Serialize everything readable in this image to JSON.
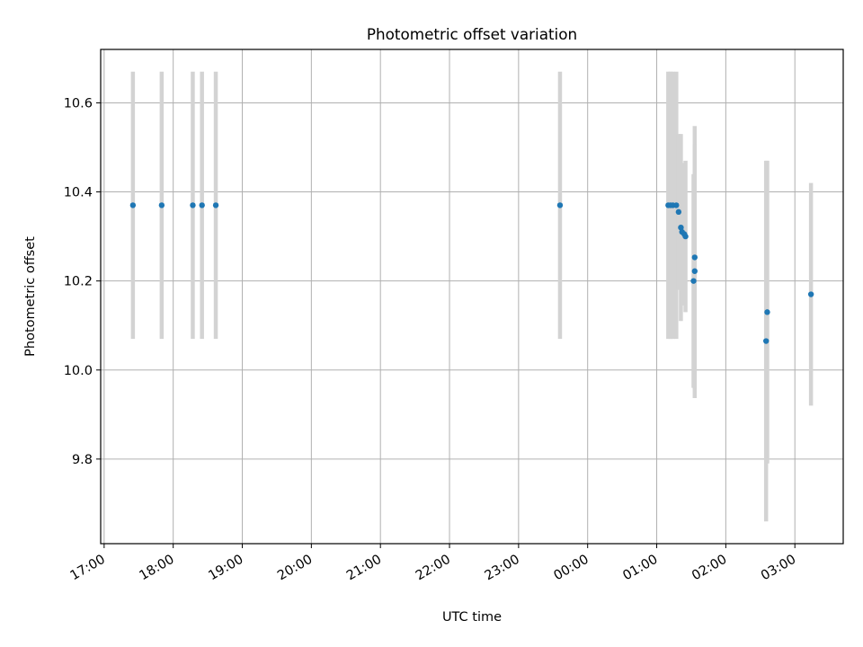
{
  "chart_data": {
    "type": "scatter",
    "title": "Photometric offset variation",
    "xlabel": "UTC time",
    "ylabel": "Photometric offset",
    "grid": true,
    "x_axis": {
      "kind": "time",
      "tick_labels": [
        "17:00",
        "18:00",
        "19:00",
        "20:00",
        "21:00",
        "22:00",
        "23:00",
        "00:00",
        "01:00",
        "02:00",
        "03:00"
      ],
      "range": [
        "16:57",
        "03:42"
      ]
    },
    "y_axis": {
      "tick_values": [
        9.8,
        10.0,
        10.2,
        10.4,
        10.6
      ],
      "tick_labels": [
        "9.8",
        "10.0",
        "10.2",
        "10.4",
        "10.6"
      ],
      "range": [
        9.61,
        10.72
      ]
    },
    "colors": {
      "marker": "#1f77b4",
      "error_bar": "#d3d3d3",
      "grid": "#b0b0b0"
    },
    "series": [
      {
        "points": [
          {
            "x": "17:25",
            "y": 10.37,
            "err": 0.3
          },
          {
            "x": "17:50",
            "y": 10.37,
            "err": 0.3
          },
          {
            "x": "18:17",
            "y": 10.37,
            "err": 0.3
          },
          {
            "x": "18:25",
            "y": 10.37,
            "err": 0.3
          },
          {
            "x": "18:37",
            "y": 10.37,
            "err": 0.3
          },
          {
            "x": "23:36",
            "y": 10.37,
            "err": 0.3
          },
          {
            "x": "01:10",
            "y": 10.37,
            "err": 0.3
          },
          {
            "x": "01:12",
            "y": 10.37,
            "err": 0.3
          },
          {
            "x": "01:14",
            "y": 10.37,
            "err": 0.3
          },
          {
            "x": "01:17",
            "y": 10.37,
            "err": 0.3
          },
          {
            "x": "01:19",
            "y": 10.355,
            "err": 0.175
          },
          {
            "x": "01:21",
            "y": 10.32,
            "err": 0.21
          },
          {
            "x": "01:22",
            "y": 10.31,
            "err": 0.15
          },
          {
            "x": "01:24",
            "y": 10.305,
            "err": 0.16
          },
          {
            "x": "01:25",
            "y": 10.3,
            "err": 0.17
          },
          {
            "x": "01:32",
            "y": 10.2,
            "err": 0.24
          },
          {
            "x": "01:33",
            "y": 10.222,
            "err": 0.285
          },
          {
            "x": "01:33",
            "y": 10.253,
            "err": 0.295
          },
          {
            "x": "02:35",
            "y": 10.065,
            "err": 0.405
          },
          {
            "x": "02:36",
            "y": 10.13,
            "err": 0.34
          },
          {
            "x": "03:14",
            "y": 10.17,
            "err": 0.25
          }
        ]
      }
    ]
  }
}
